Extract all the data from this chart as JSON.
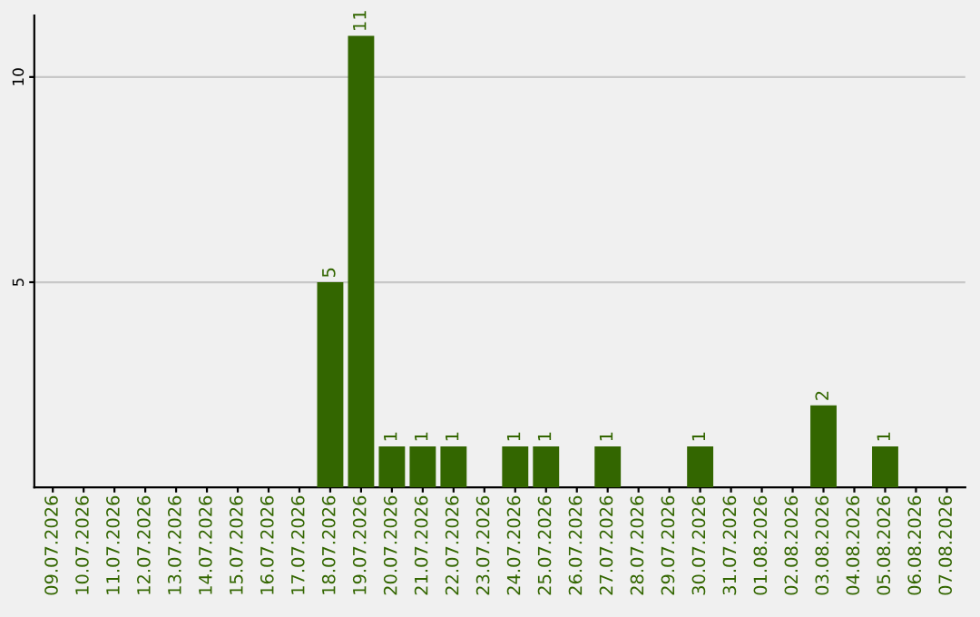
{
  "chart_data": {
    "type": "bar",
    "categories": [
      "09.07.2026",
      "10.07.2026",
      "11.07.2026",
      "12.07.2026",
      "13.07.2026",
      "14.07.2026",
      "15.07.2026",
      "16.07.2026",
      "17.07.2026",
      "18.07.2026",
      "19.07.2026",
      "20.07.2026",
      "21.07.2026",
      "22.07.2026",
      "23.07.2026",
      "24.07.2026",
      "25.07.2026",
      "26.07.2026",
      "27.07.2026",
      "28.07.2026",
      "29.07.2026",
      "30.07.2026",
      "31.07.2026",
      "01.08.2026",
      "02.08.2026",
      "03.08.2026",
      "04.08.2026",
      "05.08.2026",
      "06.08.2026",
      "07.08.2026"
    ],
    "values": [
      0,
      0,
      0,
      0,
      0,
      0,
      0,
      0,
      0,
      5,
      11,
      1,
      1,
      1,
      0,
      1,
      1,
      0,
      1,
      0,
      0,
      1,
      0,
      0,
      0,
      2,
      0,
      1,
      0,
      0
    ],
    "value_labels": [
      null,
      null,
      null,
      null,
      null,
      null,
      null,
      null,
      null,
      "5",
      "11",
      "1",
      "1",
      "1",
      null,
      "1",
      "1",
      null,
      "1",
      null,
      null,
      "1",
      null,
      null,
      null,
      "2",
      null,
      "1",
      null,
      null
    ],
    "color": "#336600",
    "ylim": [
      0,
      11.5
    ],
    "yticks": [
      5,
      10
    ],
    "grid": "y",
    "legend": false
  }
}
